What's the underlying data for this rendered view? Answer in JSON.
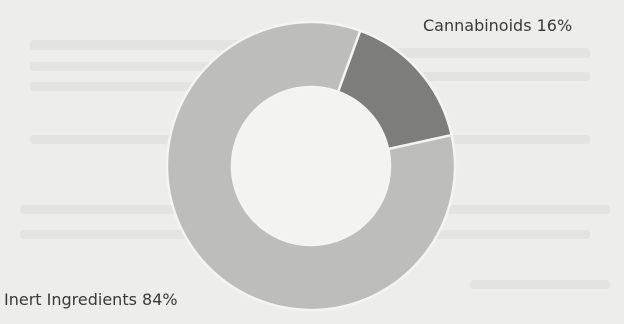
{
  "chart_data": {
    "type": "pie",
    "donut": true,
    "slices": [
      {
        "label": "Cannabinoids 16%",
        "value": 16,
        "color": "#7d7d7b"
      },
      {
        "label": "Inert Ingredients 84%",
        "value": 84,
        "color": "#bdbdbb"
      }
    ]
  }
}
